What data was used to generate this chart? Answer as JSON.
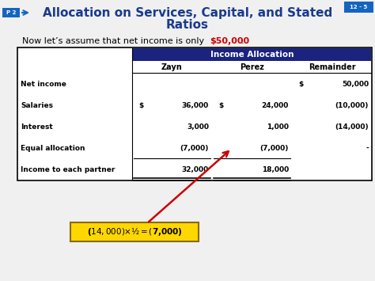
{
  "title_line1": "Allocation on Services, Capital, and Stated",
  "title_line2": "Ratios",
  "subtitle_plain": "Now let’s assume that net income is only ",
  "subtitle_highlight": "$50,000",
  "subtitle_end": ".",
  "page_label": "P 2",
  "slide_number": "12 - 5",
  "table_header": "Income Allocation",
  "col_headers": [
    "Zayn",
    "Perez",
    "Remainder"
  ],
  "rows": [
    {
      "label": "Net income",
      "zayn": "",
      "zayn_d": false,
      "perez": "",
      "perez_d": false,
      "rem": "50,000",
      "rem_d": true
    },
    {
      "label": "Salaries",
      "zayn": "36,000",
      "zayn_d": true,
      "perez": "24,000",
      "perez_d": true,
      "rem": "(10,000)",
      "rem_d": false
    },
    {
      "label": "Interest",
      "zayn": "3,000",
      "zayn_d": false,
      "perez": "1,000",
      "perez_d": false,
      "rem": "(14,000)",
      "rem_d": false
    },
    {
      "label": "Equal allocation",
      "zayn": "(7,000)",
      "zayn_d": false,
      "perez": "(7,000)",
      "perez_d": false,
      "rem": "-",
      "rem_d": false
    },
    {
      "label": "Income to each partner",
      "zayn": "32,000",
      "zayn_d": false,
      "perez": "18,000",
      "perez_d": false,
      "rem": "",
      "rem_d": false
    }
  ],
  "annotation_text": "($14,000) × ½ = ($7,000)",
  "bg_color": "#f0f0f0",
  "header_bg": "#1a237e",
  "header_fg": "#ffffff",
  "table_border": "#000000",
  "arrow_color": "#cc0000",
  "annotation_bg": "#ffd700",
  "annotation_border": "#8B6914",
  "title_color": "#1a3a8f",
  "highlight_color": "#cc0000",
  "p2_bg": "#1565c0",
  "p2_fg": "#ffffff",
  "slide_bg": "#1565c0"
}
